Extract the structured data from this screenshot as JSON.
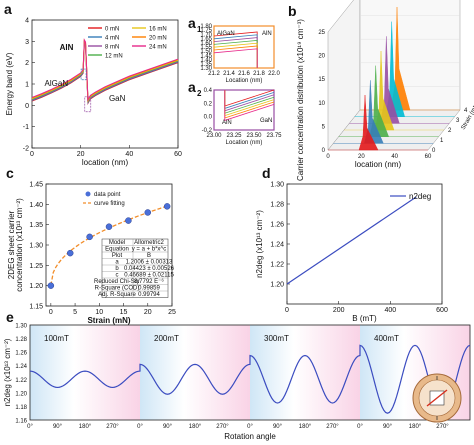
{
  "colors": {
    "accent_red": "#e41a1c",
    "orange": "#f28e2b",
    "blue": "#3b4cc0",
    "pink_band": "#f9d3e6",
    "blue_band": "#cfe6f6"
  },
  "panels": {
    "a_label": "a",
    "a1_label": "a",
    "a1_sub": "1",
    "a2_label": "a",
    "a2_sub": "2",
    "b_label": "b",
    "c_label": "c",
    "d_label": "d",
    "e_label": "e"
  },
  "chart_data": [
    {
      "id": "a",
      "type": "line",
      "xlabel": "location (nm)",
      "ylabel": "Energy band (eV)",
      "xlim": [
        0,
        60
      ],
      "ylim": [
        -2,
        4
      ],
      "xticks": [
        0,
        20,
        40,
        60
      ],
      "yticks": [
        -2,
        -1,
        0,
        1,
        2,
        3,
        4
      ],
      "annotations": [
        "AlN",
        "AlGaN",
        "GaN"
      ],
      "legend_position": "top-right",
      "series": [
        {
          "name": "0 mN",
          "color": "#e41a1c"
        },
        {
          "name": "4 mN",
          "color": "#377eb8"
        },
        {
          "name": "8 mN",
          "color": "#984ea3"
        },
        {
          "name": "12 mN",
          "color": "#4daf4a"
        },
        {
          "name": "16 mN",
          "color": "#e6c619"
        },
        {
          "name": "20 mN",
          "color": "#ff7f00"
        },
        {
          "name": "24 mN",
          "color": "#e7298a"
        }
      ],
      "curve": {
        "x": [
          0,
          4,
          8,
          12,
          16,
          20,
          21,
          21.5,
          22,
          23,
          24,
          26,
          30,
          40,
          50,
          60
        ],
        "y": [
          0.2,
          0.38,
          0.58,
          0.8,
          1.05,
          1.35,
          1.5,
          2.9,
          2.8,
          0.1,
          0.3,
          0.45,
          0.7,
          1.2,
          1.6,
          2.0
        ]
      }
    },
    {
      "id": "a1",
      "type": "line",
      "xlabel": "Location (nm)",
      "ylabel": "Energy band (eV)",
      "xlim": [
        21.2,
        22.0
      ],
      "ylim": [
        1.3,
        1.8
      ],
      "xticks": [
        "21.2",
        "21.4",
        "21.6",
        "21.8",
        "22.0"
      ],
      "yticks": [
        "1.30",
        "1.35",
        "1.40",
        "1.45",
        "1.50",
        "1.55",
        "1.60",
        "1.65",
        "1.70",
        "1.75",
        "1.80"
      ],
      "annotations": [
        "AlGaN",
        "AlN"
      ]
    },
    {
      "id": "a2",
      "type": "line",
      "xlabel": "Location (nm)",
      "ylabel": "Energy band (eV)",
      "xlim": [
        23.0,
        23.8
      ],
      "ylim": [
        -0.2,
        0.4
      ],
      "xticks": [
        "23.00",
        "23.25",
        "23.50",
        "23.75"
      ],
      "yticks": [
        "-0.2",
        "0.0",
        "0.2",
        "0.4"
      ],
      "annotations": [
        "AlN",
        "GaN"
      ]
    },
    {
      "id": "b",
      "type": "area",
      "xlabel": "location (nm)",
      "ylabel": "Carrier concentration distribution (x10¹⁹ cm⁻³)",
      "zlabel": "Strain (mN)",
      "xticks": [
        0,
        20,
        40,
        60
      ],
      "yticks": [
        0,
        5,
        10,
        15,
        20,
        25
      ],
      "zticks": [
        0,
        1,
        2,
        3,
        4
      ],
      "series": [
        {
          "strain": 0,
          "color": "#e41a1c"
        },
        {
          "strain": 4,
          "color": "#377eb8"
        },
        {
          "strain": 8,
          "color": "#4daf4a"
        },
        {
          "strain": 12,
          "color": "#e6c619"
        },
        {
          "strain": 16,
          "color": "#984ea3"
        },
        {
          "strain": 20,
          "color": "#00bcd4"
        },
        {
          "strain": 24,
          "color": "#ff7f00"
        }
      ]
    },
    {
      "id": "c",
      "type": "scatter",
      "xlabel": "Strain (mN)",
      "ylabel": "2DEG sheet carrier concentration (x10¹³ cm⁻²)",
      "xlim": [
        -1,
        25
      ],
      "ylim": [
        1.15,
        1.45
      ],
      "xticks": [
        0,
        5,
        10,
        15,
        20,
        25
      ],
      "yticks": [
        "1.15",
        "1.20",
        "1.25",
        "1.30",
        "1.35",
        "1.40",
        "1.45"
      ],
      "legend": [
        "data point",
        "curve fitting"
      ],
      "legend_position": "top-left",
      "points": {
        "x": [
          0,
          4,
          8,
          12,
          16,
          20,
          24
        ],
        "y": [
          1.2,
          1.28,
          1.32,
          1.345,
          1.36,
          1.38,
          1.395
        ]
      },
      "fit_table": [
        [
          "Model",
          "Allometric2"
        ],
        [
          "Equation",
          "y = a + b*x^c"
        ],
        [
          "Plot",
          "B"
        ],
        [
          "a",
          "1.2006 ± 0.00313"
        ],
        [
          "b",
          "0.04423 ± 0.00526"
        ],
        [
          "c",
          "0.46689 ± 0.02115"
        ],
        [
          "Reduced Chi-Sqr",
          "8.7792 E⁻⁶"
        ],
        [
          "R-Square (COD)",
          "0.99859"
        ],
        [
          "Adj. R-Square",
          "0.99794"
        ]
      ]
    },
    {
      "id": "d",
      "type": "line",
      "xlabel": "B (mT)",
      "ylabel": "n2deg (x10¹³ cm⁻²)",
      "legend": [
        "n2deg"
      ],
      "legend_position": "top-right",
      "xlim": [
        0,
        600
      ],
      "ylim": [
        1.18,
        1.3
      ],
      "xticks": [
        0,
        200,
        400,
        600
      ],
      "yticks": [
        "1.20",
        "1.22",
        "1.24",
        "1.26",
        "1.28",
        "1.30"
      ],
      "x": [
        0,
        500
      ],
      "y": [
        1.2,
        1.287
      ]
    },
    {
      "id": "e",
      "type": "line",
      "xlabel": "Rotation angle",
      "ylabel": "n2deg (x10¹³ cm⁻²)",
      "ylim": [
        1.16,
        1.3
      ],
      "yticks": [
        "1.16",
        "1.18",
        "1.20",
        "1.22",
        "1.24",
        "1.26",
        "1.28",
        "1.30"
      ],
      "segments": [
        "100mT",
        "200mT",
        "300mT",
        "400mT"
      ],
      "xticks": [
        "0°",
        "90°",
        "180°",
        "270°"
      ],
      "amplitudes": [
        0.012,
        0.022,
        0.035,
        0.05
      ],
      "baseline": 1.22
    }
  ]
}
